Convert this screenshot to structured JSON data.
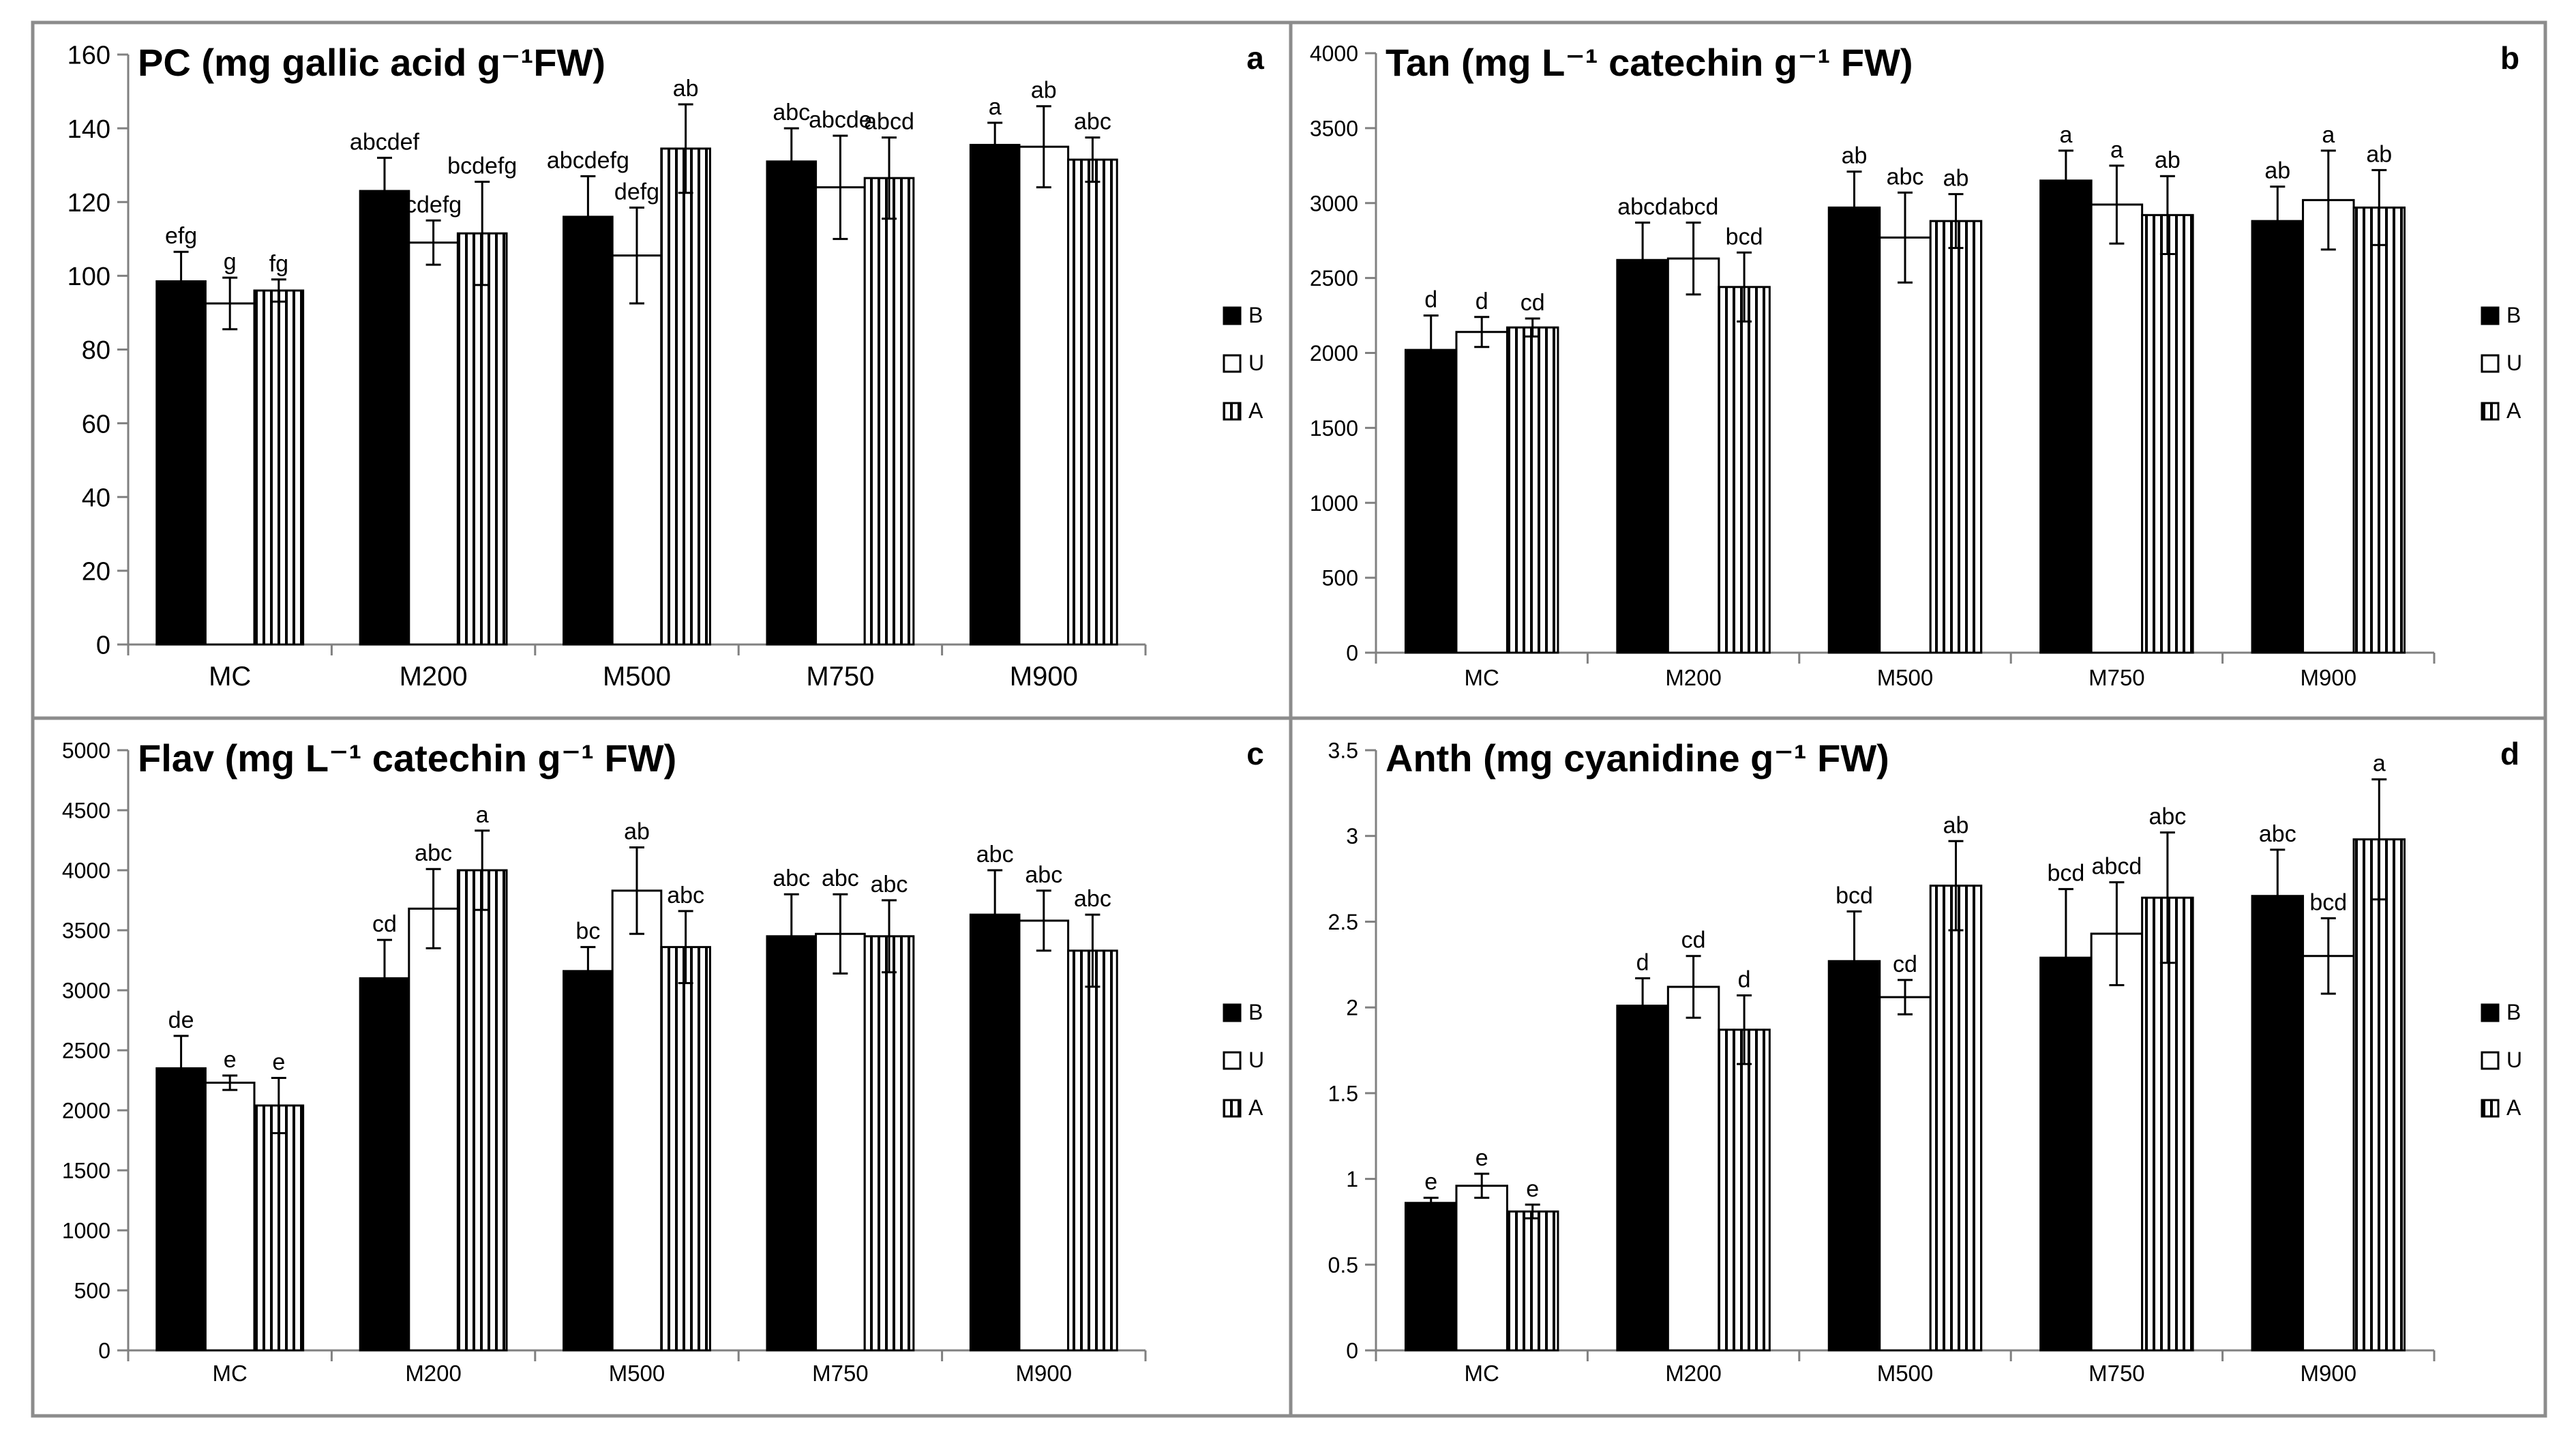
{
  "colors": {
    "B": "#000000",
    "U": "#ffffff",
    "A": "#ffffff",
    "stroke": "#000000",
    "frame": "#8c8c8c"
  },
  "legend": [
    "B",
    "U",
    "A"
  ],
  "chart_data": [
    {
      "panel": "a",
      "type": "bar",
      "title": "PC (mg gallic acid g⁻¹FW)",
      "categories": [
        "MC",
        "M200",
        "M500",
        "M750",
        "M900"
      ],
      "ylim": [
        0,
        160
      ],
      "yticks": [
        0,
        20,
        40,
        60,
        80,
        100,
        120,
        140,
        160
      ],
      "legend_placement": "right",
      "series": [
        {
          "name": "B",
          "values": [
            98.5,
            123,
            116,
            131,
            135.5
          ],
          "errors": [
            8,
            9,
            11,
            9,
            6
          ],
          "labels": [
            "efg",
            "abcdef",
            "abcdefg",
            "abc",
            "a"
          ]
        },
        {
          "name": "U",
          "values": [
            92.5,
            109,
            105.5,
            124,
            135
          ],
          "errors": [
            7,
            6,
            13,
            14,
            11
          ],
          "labels": [
            "g",
            "cdefg",
            "defg",
            "abcde",
            "ab"
          ]
        },
        {
          "name": "A",
          "values": [
            96,
            111.5,
            134.5,
            126.5,
            131.5
          ],
          "errors": [
            3,
            14,
            12,
            11,
            6
          ],
          "labels": [
            "fg",
            "bcdefg",
            "ab",
            "abcd",
            "abc"
          ]
        }
      ]
    },
    {
      "panel": "b",
      "type": "bar",
      "title": "Tan (mg L⁻¹ catechin g⁻¹ FW)",
      "categories": [
        "MC",
        "M200",
        "M500",
        "M750",
        "M900"
      ],
      "ylim": [
        0,
        4000
      ],
      "yticks": [
        0,
        500,
        1000,
        1500,
        2000,
        2500,
        3000,
        3500,
        4000
      ],
      "legend_placement": "right",
      "series": [
        {
          "name": "B",
          "values": [
            2020,
            2620,
            2970,
            3150,
            2880
          ],
          "errors": [
            230,
            250,
            240,
            200,
            230
          ],
          "labels": [
            "d",
            "abcd",
            "ab",
            "a",
            "ab"
          ]
        },
        {
          "name": "U",
          "values": [
            2140,
            2630,
            2770,
            2990,
            3020
          ],
          "errors": [
            100,
            240,
            300,
            260,
            330
          ],
          "labels": [
            "d",
            "abcd",
            "abc",
            "a",
            "a"
          ]
        },
        {
          "name": "A",
          "values": [
            2170,
            2440,
            2880,
            2920,
            2970
          ],
          "errors": [
            60,
            230,
            180,
            260,
            250
          ],
          "labels": [
            "cd",
            "bcd",
            "ab",
            "ab",
            "ab"
          ]
        }
      ]
    },
    {
      "panel": "c",
      "type": "bar",
      "title": "Flav (mg L⁻¹ catechin g⁻¹ FW)",
      "categories": [
        "MC",
        "M200",
        "M500",
        "M750",
        "M900"
      ],
      "ylim": [
        0,
        5000
      ],
      "yticks": [
        0,
        500,
        1000,
        1500,
        2000,
        2500,
        3000,
        3500,
        4000,
        4500,
        5000
      ],
      "legend_placement": "right",
      "series": [
        {
          "name": "B",
          "values": [
            2350,
            3100,
            3160,
            3450,
            3630
          ],
          "errors": [
            270,
            320,
            200,
            350,
            370
          ],
          "labels": [
            "de",
            "cd",
            "bc",
            "abc",
            "abc"
          ]
        },
        {
          "name": "U",
          "values": [
            2230,
            3680,
            3830,
            3470,
            3580
          ],
          "errors": [
            60,
            330,
            360,
            330,
            250
          ],
          "labels": [
            "e",
            "abc",
            "ab",
            "abc",
            "abc"
          ]
        },
        {
          "name": "A",
          "values": [
            2040,
            4000,
            3360,
            3450,
            3330
          ],
          "errors": [
            230,
            330,
            300,
            300,
            300
          ],
          "labels": [
            "e",
            "a",
            "abc",
            "abc",
            "abc"
          ]
        }
      ]
    },
    {
      "panel": "d",
      "type": "bar",
      "title": "Anth (mg cyanidine g⁻¹ FW)",
      "categories": [
        "MC",
        "M200",
        "M500",
        "M750",
        "M900"
      ],
      "ylim": [
        0,
        3.5
      ],
      "yticks": [
        0,
        0.5,
        1,
        1.5,
        2,
        2.5,
        3,
        3.5
      ],
      "legend_placement": "right",
      "series": [
        {
          "name": "B",
          "values": [
            0.86,
            2.01,
            2.27,
            2.29,
            2.65
          ],
          "errors": [
            0.03,
            0.16,
            0.29,
            0.4,
            0.27
          ],
          "labels": [
            "e",
            "d",
            "bcd",
            "bcd",
            "abc"
          ]
        },
        {
          "name": "U",
          "values": [
            0.96,
            2.12,
            2.06,
            2.43,
            2.3
          ],
          "errors": [
            0.07,
            0.18,
            0.1,
            0.3,
            0.22
          ],
          "labels": [
            "e",
            "cd",
            "cd",
            "abcd",
            "bcd"
          ]
        },
        {
          "name": "A",
          "values": [
            0.81,
            1.87,
            2.71,
            2.64,
            2.98
          ],
          "errors": [
            0.04,
            0.2,
            0.26,
            0.38,
            0.35
          ],
          "labels": [
            "e",
            "d",
            "ab",
            "abc",
            "a"
          ]
        }
      ]
    }
  ]
}
